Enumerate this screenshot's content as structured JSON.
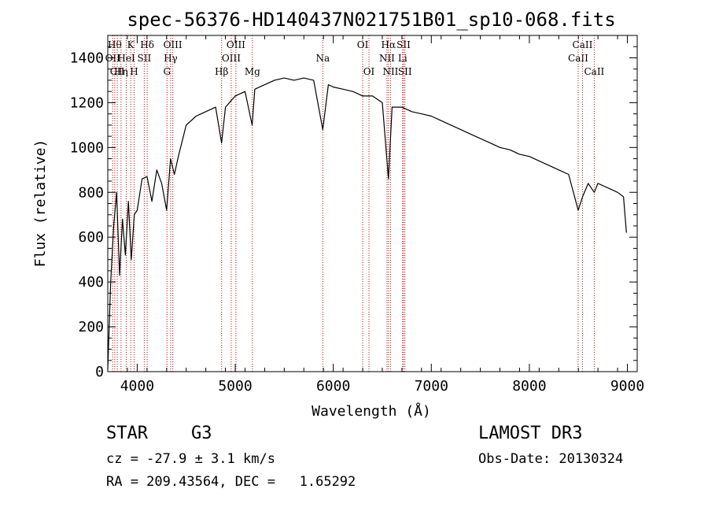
{
  "chart_data": {
    "type": "line",
    "title": "spec-56376-HD140437N021751B01_sp10-068.fits",
    "xlabel": "Wavelength (Å)",
    "ylabel": "Flux (relative)",
    "xlim": [
      3700,
      9100
    ],
    "ylim": [
      0,
      1500
    ],
    "x_ticks": [
      4000,
      5000,
      6000,
      7000,
      8000,
      9000
    ],
    "y_ticks": [
      0,
      200,
      400,
      600,
      800,
      1000,
      1200,
      1400
    ],
    "grid": false,
    "series": [
      {
        "x": [
          3700,
          3730,
          3760,
          3790,
          3820,
          3850,
          3880,
          3910,
          3940,
          3970,
          4000,
          4050,
          4100,
          4150,
          4200,
          4250,
          4300,
          4340,
          4380,
          4420,
          4500,
          4600,
          4700,
          4800,
          4861,
          4900,
          5000,
          5100,
          5172,
          5200,
          5300,
          5400,
          5500,
          5600,
          5700,
          5800,
          5893,
          5950,
          6000,
          6100,
          6200,
          6300,
          6400,
          6500,
          6563,
          6600,
          6700,
          6800,
          6900,
          7000,
          7100,
          7200,
          7300,
          7400,
          7500,
          7600,
          7700,
          7800,
          7900,
          8000,
          8100,
          8200,
          8300,
          8400,
          8498,
          8542,
          8600,
          8662,
          8700,
          8800,
          8900,
          8960,
          8990
        ],
        "values": [
          10,
          400,
          650,
          800,
          430,
          680,
          520,
          760,
          500,
          700,
          720,
          860,
          870,
          760,
          900,
          840,
          720,
          950,
          880,
          960,
          1100,
          1140,
          1160,
          1180,
          1020,
          1180,
          1230,
          1250,
          1100,
          1260,
          1280,
          1300,
          1310,
          1300,
          1310,
          1300,
          1080,
          1280,
          1270,
          1260,
          1250,
          1230,
          1230,
          1200,
          860,
          1180,
          1180,
          1160,
          1150,
          1140,
          1120,
          1100,
          1080,
          1060,
          1040,
          1020,
          1000,
          990,
          970,
          960,
          940,
          920,
          900,
          880,
          720,
          780,
          840,
          800,
          840,
          820,
          800,
          780,
          620
        ]
      }
    ],
    "line_markers": [
      {
        "x": 3750,
        "label": "OII",
        "row": 1
      },
      {
        "x": 3771,
        "label": "Hθ",
        "row": 0
      },
      {
        "x": 3797,
        "label": "CII",
        "row": 2
      },
      {
        "x": 3835,
        "label": "Hη",
        "row": 2
      },
      {
        "x": 3889,
        "label": "HeI",
        "row": 1
      },
      {
        "x": 3934,
        "label": "K",
        "row": 0
      },
      {
        "x": 3969,
        "label": "H",
        "row": 2
      },
      {
        "x": 4072,
        "label": "SII",
        "row": 1
      },
      {
        "x": 4102,
        "label": "Hδ",
        "row": 0
      },
      {
        "x": 4304,
        "label": "G",
        "row": 2
      },
      {
        "x": 4341,
        "label": "Hγ",
        "row": 1
      },
      {
        "x": 4363,
        "label": "OIII",
        "row": 0
      },
      {
        "x": 4861,
        "label": "Hβ",
        "row": 2
      },
      {
        "x": 4959,
        "label": "OIII",
        "row": 1
      },
      {
        "x": 5007,
        "label": "OIII",
        "row": 0
      },
      {
        "x": 5175,
        "label": "Mg",
        "row": 2
      },
      {
        "x": 5893,
        "label": "Na",
        "row": 1
      },
      {
        "x": 6300,
        "label": "OI",
        "row": 0
      },
      {
        "x": 6364,
        "label": "OI",
        "row": 2
      },
      {
        "x": 6548,
        "label": "NII",
        "row": 1
      },
      {
        "x": 6563,
        "label": "Hα",
        "row": 0
      },
      {
        "x": 6584,
        "label": "NII",
        "row": 2
      },
      {
        "x": 6707,
        "label": "Li",
        "row": 1
      },
      {
        "x": 6717,
        "label": "SII",
        "row": 0
      },
      {
        "x": 6731,
        "label": "SII",
        "row": 2
      },
      {
        "x": 8498,
        "label": "CaII",
        "row": 1
      },
      {
        "x": 8542,
        "label": "CaII",
        "row": 0
      },
      {
        "x": 8662,
        "label": "CaII",
        "row": 2
      }
    ]
  },
  "info": {
    "object_class": "STAR",
    "subclass": "G3",
    "survey": "LAMOST DR3",
    "cz": "cz = -27.9 ± 3.1 km/s",
    "obs_date": "Obs-Date: 20130324",
    "radec": "RA = 209.43564, DEC =   1.65292"
  },
  "colors": {
    "spectrum": "#000000",
    "line_markers": "#cc0000",
    "axes": "#000000"
  }
}
